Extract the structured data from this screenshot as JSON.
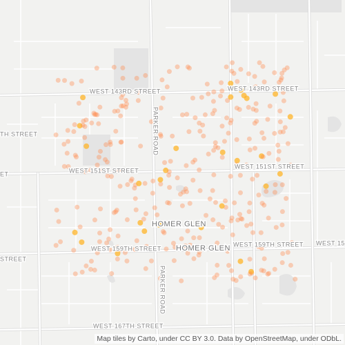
{
  "map": {
    "road_labels": [
      "WEST 143RD STREET",
      "WEST 143RD STREET",
      "TH STREET",
      "PARKER ROAD",
      "WEST 151ST STREET",
      "WEST 151ST STREET",
      "ET",
      "WEST 159TH STREET",
      "WEST 159TH STREET",
      "WEST 15",
      "STREET",
      "PARKER ROAD",
      "WEST 167TH STREET"
    ],
    "place_labels": [
      "HOMER GLEN",
      "HOMER GLEN"
    ],
    "attribution": "Map tiles by Carto, under CC BY 3.0. Data by OpenStreetMap, under ODbL."
  }
}
